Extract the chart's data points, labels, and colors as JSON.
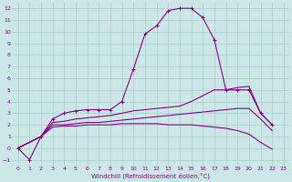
{
  "xlabel": "Windchill (Refroidissement éolien,°C)",
  "bg_color": "#cce8e6",
  "grid_color": "#aaccca",
  "line_color": "#880088",
  "xlim": [
    -0.5,
    23.5
  ],
  "ylim": [
    -1.5,
    12.5
  ],
  "xticks": [
    0,
    1,
    2,
    3,
    4,
    5,
    6,
    7,
    8,
    9,
    10,
    11,
    12,
    13,
    14,
    15,
    16,
    17,
    18,
    19,
    20,
    21,
    22,
    23
  ],
  "yticks": [
    -1,
    0,
    1,
    2,
    3,
    4,
    5,
    6,
    7,
    8,
    9,
    10,
    11,
    12
  ],
  "curves": [
    {
      "x": [
        0,
        1,
        2,
        3,
        4,
        5,
        6,
        7,
        8,
        9,
        10,
        11,
        12,
        13,
        14,
        15,
        16,
        17,
        18,
        19,
        20,
        21,
        22
      ],
      "y": [
        0,
        -1,
        1,
        2.5,
        3,
        3.2,
        3.3,
        3.3,
        3.3,
        4,
        6.8,
        9.8,
        10.5,
        11.8,
        12.0,
        12.0,
        11.2,
        9.3,
        5,
        5,
        5,
        3,
        2
      ],
      "marker": true
    },
    {
      "x": [
        0,
        2,
        3,
        4,
        5,
        6,
        7,
        8,
        9,
        10,
        11,
        12,
        13,
        14,
        15,
        16,
        17,
        18,
        19,
        20,
        21,
        22
      ],
      "y": [
        0,
        1,
        2.2,
        2.3,
        2.5,
        2.6,
        2.7,
        2.8,
        3,
        3.2,
        3.3,
        3.4,
        3.5,
        3.6,
        4,
        4.5,
        5,
        5,
        5.2,
        5.3,
        3,
        2
      ],
      "marker": false
    },
    {
      "x": [
        0,
        2,
        3,
        4,
        5,
        6,
        7,
        8,
        9,
        10,
        11,
        12,
        13,
        14,
        15,
        16,
        17,
        18,
        19,
        20,
        21,
        22
      ],
      "y": [
        0,
        1,
        2,
        2,
        2.1,
        2.2,
        2.2,
        2.3,
        2.4,
        2.5,
        2.6,
        2.7,
        2.8,
        2.9,
        3,
        3.1,
        3.2,
        3.3,
        3.4,
        3.4,
        2.5,
        1.5
      ],
      "marker": false
    },
    {
      "x": [
        0,
        2,
        3,
        4,
        5,
        6,
        7,
        8,
        9,
        10,
        11,
        12,
        13,
        14,
        15,
        16,
        17,
        18,
        19,
        20,
        21,
        22
      ],
      "y": [
        0,
        1,
        1.8,
        1.9,
        1.9,
        2,
        2,
        2,
        2.1,
        2.1,
        2.1,
        2.1,
        2,
        2,
        2,
        1.9,
        1.8,
        1.7,
        1.5,
        1.2,
        0.5,
        -0.1
      ],
      "marker": false
    }
  ]
}
